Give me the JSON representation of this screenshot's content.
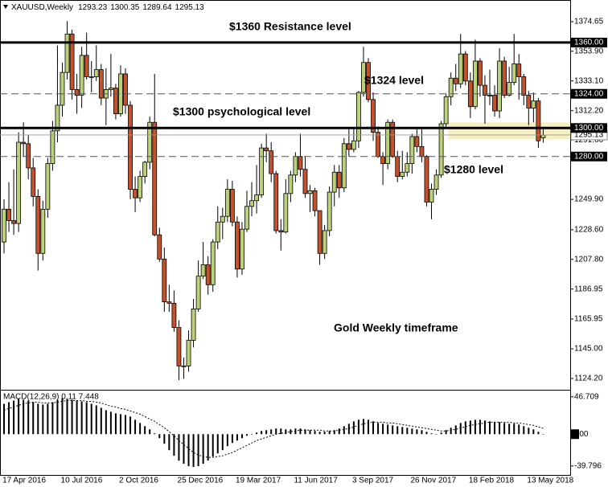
{
  "header": {
    "symbol": "XAUUSD,Weekly"
  },
  "chart_data": [
    {
      "type": "candlestick",
      "categories": [
        null,
        null,
        "17 Apr 2016",
        null,
        null,
        null,
        null,
        null,
        null,
        null,
        null,
        null,
        null,
        null,
        "10 Jul 2016",
        null,
        null,
        null,
        null,
        null,
        null,
        null,
        null,
        null,
        null,
        null,
        "2 Oct 2016",
        null,
        null,
        null,
        null,
        null,
        null,
        null,
        null,
        null,
        null,
        null,
        "25 Dec 2016",
        null,
        null,
        null,
        null,
        null,
        null,
        null,
        null,
        null,
        null,
        null,
        "19 Mar 2017",
        null,
        null,
        null,
        null,
        null,
        null,
        null,
        null,
        null,
        null,
        null,
        "11 Jun 2017",
        null,
        null,
        null,
        null,
        null,
        null,
        null,
        null,
        null,
        null,
        null,
        "3 Sep 2017",
        null,
        null,
        null,
        null,
        null,
        null,
        null,
        null,
        null,
        null,
        null,
        "26 Nov 2017",
        null,
        null,
        null,
        null,
        null,
        null,
        null,
        null,
        null,
        null,
        null,
        "18 Feb 2018",
        null,
        null,
        null,
        null,
        null,
        null,
        null,
        null,
        null,
        null,
        null,
        "13 May 2018",
        null
      ],
      "open": [
        1220,
        1243,
        1235,
        1233,
        1290,
        1289,
        1272,
        1252,
        1212,
        1243,
        1275,
        1298,
        1316,
        1339,
        1366,
        1327,
        1323,
        1351,
        1336,
        1336,
        1341,
        1321,
        1327,
        1328,
        1310,
        1338,
        1316,
        1257,
        1251,
        1266,
        1276,
        1304,
        1225,
        1208,
        1178,
        1177,
        1160,
        1133,
        1133,
        1151,
        1173,
        1196,
        1204,
        1190,
        1220,
        1234,
        1238,
        1257,
        1234,
        1201,
        1229,
        1245,
        1249,
        1253,
        1286,
        1284,
        1268,
        1228,
        1227,
        1254,
        1267,
        1280,
        1271,
        1254,
        1256,
        1242,
        1212,
        1228,
        1255,
        1269,
        1258,
        1289,
        1285,
        1291,
        1325,
        1346,
        1320,
        1297,
        1280,
        1275,
        1304,
        1280,
        1266,
        1269,
        1275,
        1294,
        1287,
        1280,
        1248,
        1257,
        1267,
        1303,
        1322,
        1335,
        1331,
        1352,
        1333,
        1315,
        1347,
        1330,
        1323,
        1323,
        1312,
        1347,
        1323,
        1332,
        1345,
        1336,
        1323,
        1314,
        1319,
        1293.23
      ],
      "high": [
        1250,
        1262,
        1271,
        1297,
        1304,
        1295,
        1279,
        1257,
        1249,
        1279,
        1305,
        1358,
        1346,
        1375,
        1369,
        1338,
        1357,
        1367,
        1347,
        1358,
        1345,
        1342,
        1352,
        1331,
        1344,
        1342,
        1319,
        1266,
        1270,
        1277,
        1308,
        1338,
        1230,
        1216,
        1190,
        1186,
        1165,
        1139,
        1158,
        1180,
        1207,
        1220,
        1210,
        1222,
        1245,
        1244,
        1264,
        1263,
        1238,
        1234,
        1256,
        1262,
        1274,
        1289,
        1296,
        1290,
        1270,
        1236,
        1264,
        1270,
        1283,
        1296,
        1280,
        1260,
        1258,
        1242,
        1232,
        1259,
        1274,
        1274,
        1293,
        1300,
        1300,
        1326,
        1357,
        1349,
        1325,
        1301,
        1283,
        1306,
        1306,
        1284,
        1284,
        1283,
        1296,
        1299,
        1300,
        1281,
        1261,
        1271,
        1305,
        1324,
        1339,
        1345,
        1366,
        1354,
        1339,
        1362,
        1349,
        1337,
        1341,
        1330,
        1356,
        1350,
        1343,
        1366,
        1352,
        1338,
        1326,
        1325,
        1321,
        1300.35
      ],
      "low": [
        1212,
        1227,
        1225,
        1227,
        1280,
        1264,
        1245,
        1200,
        1207,
        1237,
        1270,
        1290,
        1308,
        1334,
        1320,
        1310,
        1314,
        1334,
        1325,
        1333,
        1316,
        1302,
        1322,
        1306,
        1308,
        1310,
        1250,
        1241,
        1248,
        1261,
        1271,
        1224,
        1206,
        1171,
        1171,
        1157,
        1123,
        1124,
        1129,
        1146,
        1171,
        1194,
        1183,
        1185,
        1215,
        1222,
        1234,
        1231,
        1195,
        1197,
        1227,
        1238,
        1240,
        1251,
        1276,
        1262,
        1226,
        1214,
        1226,
        1248,
        1262,
        1266,
        1251,
        1241,
        1238,
        1204,
        1208,
        1224,
        1245,
        1251,
        1255,
        1280,
        1283,
        1286,
        1322,
        1318,
        1291,
        1279,
        1260,
        1271,
        1279,
        1262,
        1264,
        1266,
        1268,
        1283,
        1276,
        1245,
        1236,
        1253,
        1265,
        1300,
        1316,
        1326,
        1328,
        1330,
        1307,
        1313,
        1322,
        1303,
        1316,
        1308,
        1307,
        1321,
        1322,
        1330,
        1320,
        1316,
        1302,
        1304,
        1286,
        1289.64
      ],
      "close": [
        1243,
        1235,
        1233,
        1290,
        1289,
        1272,
        1252,
        1212,
        1243,
        1275,
        1298,
        1316,
        1339,
        1366,
        1327,
        1323,
        1351,
        1336,
        1336,
        1341,
        1321,
        1327,
        1328,
        1310,
        1338,
        1316,
        1257,
        1251,
        1266,
        1276,
        1304,
        1225,
        1208,
        1178,
        1177,
        1160,
        1133,
        1133,
        1151,
        1173,
        1196,
        1204,
        1190,
        1220,
        1234,
        1238,
        1257,
        1234,
        1201,
        1229,
        1245,
        1249,
        1253,
        1286,
        1284,
        1268,
        1228,
        1227,
        1254,
        1267,
        1280,
        1271,
        1254,
        1256,
        1242,
        1212,
        1228,
        1255,
        1269,
        1258,
        1289,
        1285,
        1291,
        1325,
        1346,
        1320,
        1297,
        1280,
        1275,
        1304,
        1280,
        1266,
        1269,
        1275,
        1294,
        1287,
        1280,
        1248,
        1257,
        1267,
        1303,
        1322,
        1335,
        1331,
        1352,
        1333,
        1315,
        1347,
        1330,
        1323,
        1323,
        1312,
        1347,
        1323,
        1332,
        1345,
        1336,
        1323,
        1314,
        1319,
        1291,
        1295.13
      ],
      "up_color": "#bcd27a",
      "down_color": "#c4532d",
      "ylim": [
        1117.4,
        1387.6
      ],
      "yticks": [
        1374.65,
        {
          "value": 1353.9,
          "label": "1353.90"
        },
        {
          "value": 1333.1,
          "label": "1333.10"
        },
        {
          "value": 1312.2,
          "label": "1312.20"
        },
        {
          "value": 1291.6,
          "label": "1291.60"
        },
        {
          "value": 1249.9,
          "label": "1249.90"
        },
        {
          "value": 1228.6,
          "label": "1228.60"
        },
        {
          "value": 1207.8,
          "label": "1207.80"
        },
        1186.95,
        1165.95,
        {
          "value": 1145,
          "label": "1145.00"
        },
        {
          "value": 1124.2,
          "label": "1124.20"
        }
      ],
      "levels": [
        {
          "value": 1360,
          "label": "1360.00",
          "style": "solid"
        },
        {
          "value": 1324,
          "label": "1324.00",
          "style": "dashed"
        },
        {
          "value": 1300,
          "label": "1300.00",
          "style": "solid"
        },
        {
          "value": 1280,
          "label": "1280.00",
          "style": "dashed"
        }
      ],
      "highlight_band": [
        1292,
        1304
      ],
      "band_color": "#f7f0c4",
      "annotations": [
        "$1360 Resistance level",
        "$1324 level",
        "$1300 psychological level",
        "$1280 level",
        "Gold Weekly timeframe"
      ]
    },
    {
      "type": "macd",
      "title": "MACD(12,26,9) 0.11 7.448",
      "histogram": [
        38,
        40,
        42,
        44,
        43,
        42,
        40,
        38,
        37,
        38,
        40,
        43,
        45,
        44,
        43,
        42,
        41,
        40,
        38,
        36,
        33,
        30,
        28,
        26,
        25,
        24,
        22,
        18,
        14,
        10,
        6,
        1,
        -5,
        -12,
        -20,
        -27,
        -33,
        -37,
        -40,
        -41,
        -40,
        -37,
        -33,
        -28,
        -24,
        -20,
        -15,
        -11,
        -8,
        -5,
        -2,
        0,
        2,
        4,
        5,
        6,
        7,
        7,
        6,
        6,
        7,
        7,
        6,
        5,
        4,
        3,
        3,
        4,
        5,
        7,
        10,
        13,
        16,
        18,
        19,
        18,
        16,
        14,
        13,
        12,
        11,
        10,
        9,
        8,
        7,
        6,
        5,
        3,
        1,
        0,
        2,
        5,
        8,
        11,
        14,
        16,
        17,
        18,
        18,
        17,
        16,
        15,
        15,
        14,
        13,
        13,
        12,
        10,
        8,
        6,
        3,
        0.11
      ],
      "signal": [
        30,
        32,
        34,
        36,
        38,
        39,
        40,
        40,
        39,
        39,
        39,
        40,
        41,
        42,
        42,
        42,
        42,
        41,
        41,
        40,
        39,
        37,
        35,
        34,
        32,
        31,
        29,
        27,
        25,
        22,
        19,
        16,
        12,
        8,
        3,
        -2,
        -8,
        -13,
        -18,
        -23,
        -26,
        -28,
        -29,
        -29,
        -28,
        -27,
        -25,
        -23,
        -20,
        -17,
        -14,
        -11,
        -8,
        -6,
        -4,
        -2,
        0,
        1,
        2,
        3,
        4,
        5,
        5,
        5,
        5,
        5,
        4,
        4,
        4,
        5,
        6,
        7,
        9,
        11,
        13,
        14,
        15,
        15,
        15,
        14,
        14,
        13,
        12,
        11,
        10,
        9,
        8,
        7,
        6,
        5,
        4,
        4,
        5,
        6,
        8,
        9,
        11,
        12,
        13,
        14,
        15,
        15,
        15,
        15,
        15,
        14,
        14,
        13,
        12,
        11,
        9,
        7.448
      ],
      "ylim": [
        -52,
        53.5
      ],
      "yticks": [
        46.709,
        {
          "value": 0,
          "label": "0.00"
        },
        -39.796
      ]
    }
  ]
}
